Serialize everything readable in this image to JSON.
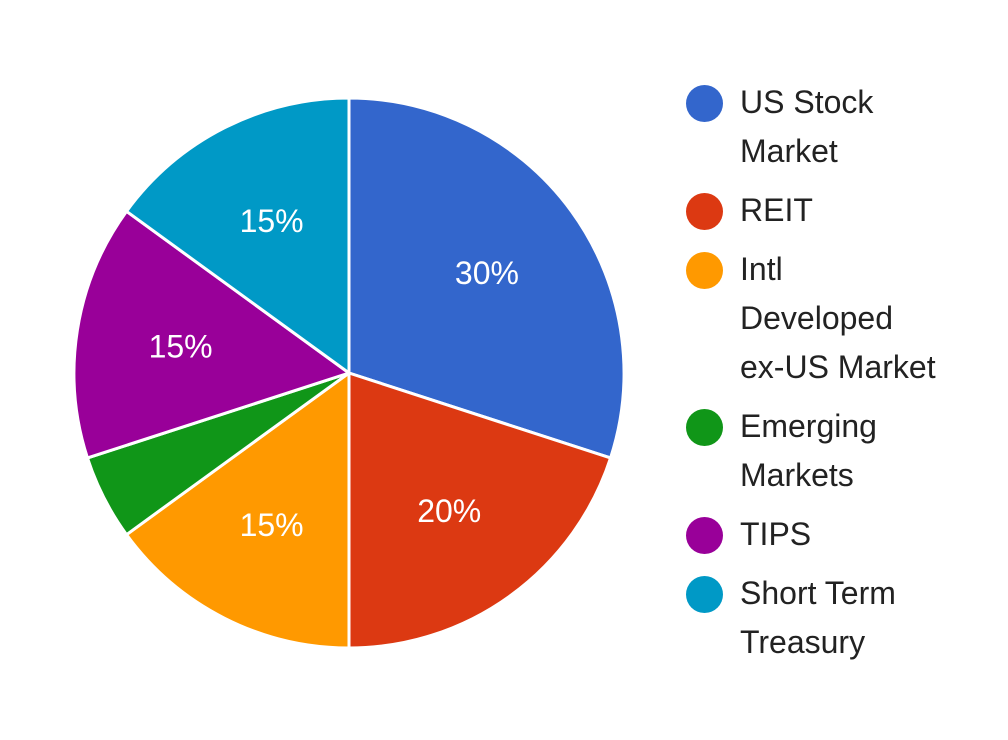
{
  "chart_data": {
    "type": "pie",
    "title": "",
    "categories": [
      "US Stock Market",
      "REIT",
      "Intl Developed ex-US Market",
      "Emerging Markets",
      "TIPS",
      "Short Term Treasury"
    ],
    "values": [
      30,
      20,
      15,
      5,
      15,
      15
    ],
    "labels": [
      "30%",
      "20%",
      "15%",
      "",
      "15%",
      "15%"
    ],
    "colors": [
      "#3366cc",
      "#dc3912",
      "#ff9900",
      "#109618",
      "#990099",
      "#0099c6"
    ],
    "legend_position": "right"
  },
  "legend": {
    "items": [
      {
        "lines": [
          "US Stock",
          "Market"
        ],
        "color": "#3366cc"
      },
      {
        "lines": [
          "REIT"
        ],
        "color": "#dc3912"
      },
      {
        "lines": [
          "Intl",
          "Developed",
          "ex-US Market"
        ],
        "color": "#ff9900"
      },
      {
        "lines": [
          "Emerging",
          "Markets"
        ],
        "color": "#109618"
      },
      {
        "lines": [
          "TIPS"
        ],
        "color": "#990099"
      },
      {
        "lines": [
          "Short Term",
          "Treasury"
        ],
        "color": "#0099c6"
      }
    ]
  }
}
